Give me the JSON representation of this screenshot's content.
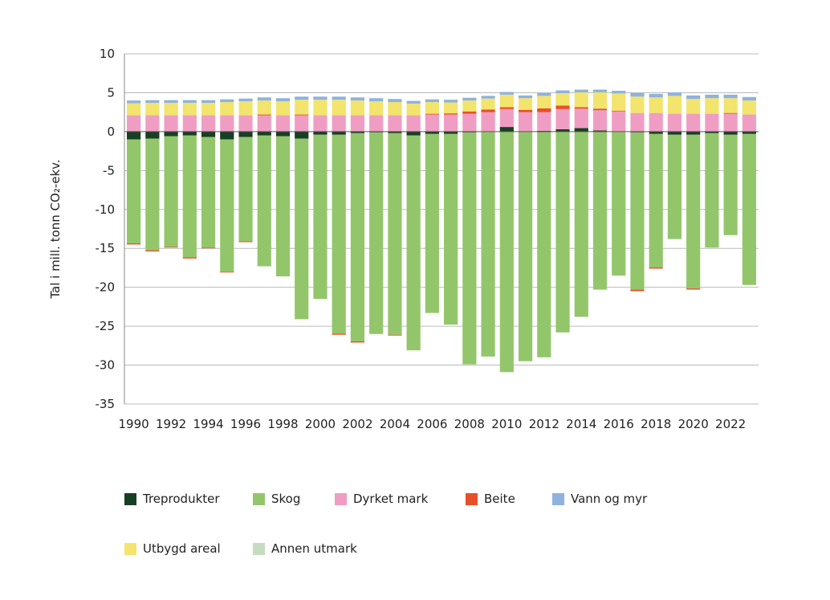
{
  "chart_data": {
    "type": "bar",
    "stacked": true,
    "ylabel": "Tal i mill. tonn CO₂-ekv.",
    "ylim": [
      -35,
      10
    ],
    "yticks": [
      10,
      5,
      0,
      -5,
      -10,
      -15,
      -20,
      -25,
      -30,
      -35
    ],
    "grid": true,
    "legend_placement": "bottom",
    "categories": [
      1990,
      1991,
      1992,
      1993,
      1994,
      1995,
      1996,
      1997,
      1998,
      1999,
      2000,
      2001,
      2002,
      2003,
      2004,
      2005,
      2006,
      2007,
      2008,
      2009,
      2010,
      2011,
      2012,
      2013,
      2014,
      2015,
      2016,
      2017,
      2018,
      2019,
      2020,
      2021,
      2022,
      2023
    ],
    "xtick_labels": [
      "1990",
      "1992",
      "1994",
      "1996",
      "1998",
      "2000",
      "2002",
      "2004",
      "2006",
      "2008",
      "2010",
      "2012",
      "2014",
      "2016",
      "2018",
      "2020",
      "2022"
    ],
    "series": [
      {
        "name": "Treprodukter",
        "color": "#173f24",
        "values": [
          -1.0,
          -0.9,
          -0.6,
          -0.5,
          -0.7,
          -1.0,
          -0.7,
          -0.5,
          -0.6,
          -0.9,
          -0.4,
          -0.4,
          -0.2,
          -0.1,
          -0.2,
          -0.5,
          -0.3,
          -0.3,
          -0.1,
          0.0,
          0.6,
          0.0,
          0.1,
          0.3,
          0.45,
          0.15,
          0.0,
          -0.1,
          -0.3,
          -0.4,
          -0.4,
          -0.2,
          -0.4,
          -0.3
        ]
      },
      {
        "name": "Skog",
        "color": "#93c66a",
        "values": [
          -13.35,
          -14.35,
          -14.2,
          -15.65,
          -14.2,
          -17.0,
          -13.4,
          -16.8,
          -18.0,
          -23.2,
          -21.1,
          -25.55,
          -26.75,
          -25.9,
          -25.9,
          -27.6,
          -23.0,
          -24.5,
          -29.8,
          -28.9,
          -30.9,
          -29.5,
          -29.0,
          -25.8,
          -23.8,
          -20.3,
          -18.5,
          -20.2,
          -17.15,
          -13.4,
          -19.75,
          -14.7,
          -12.9,
          -19.4
        ]
      },
      {
        "name": "Dyrket mark",
        "color": "#f09dc4",
        "values": [
          2.1,
          2.1,
          2.1,
          2.1,
          2.1,
          2.1,
          2.1,
          2.1,
          2.1,
          2.1,
          2.1,
          2.1,
          2.1,
          2.1,
          2.1,
          2.1,
          2.2,
          2.2,
          2.3,
          2.5,
          2.3,
          2.5,
          2.4,
          2.6,
          2.5,
          2.6,
          2.6,
          2.4,
          2.4,
          2.3,
          2.3,
          2.3,
          2.3,
          2.2
        ]
      },
      {
        "name": "Beite",
        "color": "#e8502a",
        "values": [
          -0.15,
          -0.15,
          -0.1,
          -0.15,
          -0.1,
          -0.1,
          -0.1,
          0.1,
          0.0,
          0.1,
          0.0,
          -0.15,
          -0.15,
          0.0,
          -0.1,
          0.0,
          0.1,
          0.15,
          0.3,
          0.35,
          0.25,
          0.3,
          0.5,
          0.45,
          0.2,
          0.2,
          0.1,
          -0.2,
          -0.15,
          0.0,
          -0.15,
          0.0,
          0.1,
          0.0
        ]
      },
      {
        "name": "Vann og myr",
        "color": "#8fb2de",
        "values": [
          0.35,
          0.35,
          0.35,
          0.35,
          0.35,
          0.35,
          0.35,
          0.4,
          0.4,
          0.4,
          0.4,
          0.4,
          0.4,
          0.4,
          0.4,
          0.35,
          0.35,
          0.35,
          0.35,
          0.35,
          0.35,
          0.35,
          0.35,
          0.35,
          0.35,
          0.35,
          0.35,
          0.45,
          0.45,
          0.45,
          0.45,
          0.45,
          0.45,
          0.45
        ]
      },
      {
        "name": "Utbygd areal",
        "color": "#f2e46c",
        "values": [
          1.55,
          1.6,
          1.6,
          1.6,
          1.6,
          1.7,
          1.8,
          1.8,
          1.8,
          1.9,
          2.0,
          2.0,
          1.9,
          1.8,
          1.7,
          1.5,
          1.5,
          1.4,
          1.4,
          1.4,
          1.6,
          1.5,
          1.6,
          1.6,
          1.9,
          2.1,
          2.2,
          2.1,
          2.0,
          2.3,
          1.9,
          2.0,
          1.9,
          1.8
        ]
      },
      {
        "name": "Annen utmark",
        "color": "#c5dcc0",
        "values": [
          0,
          0,
          0,
          0,
          0,
          0,
          0,
          0,
          0,
          0,
          0,
          0,
          0,
          0,
          0,
          0,
          0,
          0,
          0,
          0,
          0,
          0,
          0,
          0,
          0,
          0,
          0,
          0,
          0,
          0,
          0,
          0,
          0,
          0
        ]
      }
    ]
  }
}
